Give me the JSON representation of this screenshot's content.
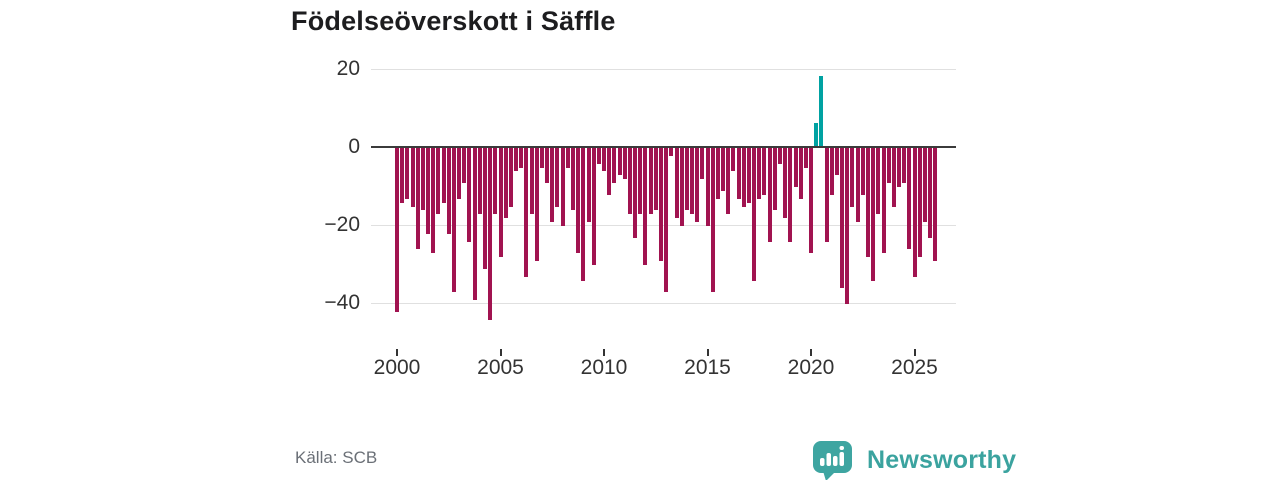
{
  "header": {
    "title": "Födelseöverskott i Säffle"
  },
  "footer": {
    "source": "Källa: SCB",
    "brand": "Newsworthy",
    "logo_icon": "newsworthy-speech-bubble-barchart-icon"
  },
  "colors": {
    "negative_bar": "#a11350",
    "positive_bar": "#00a2a2",
    "grid": "#e0e0e0",
    "zero_line": "#3b3b3b",
    "axis_text": "#333333",
    "brand_teal": "#3ba39f",
    "source_text": "#6b7077"
  },
  "chart_data": {
    "type": "bar",
    "title": "Födelseöverskott i Säffle",
    "xlabel": "",
    "ylabel": "",
    "frequency": "quarterly",
    "x_start": "2000-Q1",
    "x_end": "2026-Q1",
    "x_tick_labels": [
      "2000",
      "2005",
      "2010",
      "2015",
      "2020",
      "2025"
    ],
    "x_tick_quarter_index": [
      0,
      20,
      40,
      60,
      80,
      100
    ],
    "y_ticks": [
      20,
      0,
      -20,
      -40
    ],
    "y_tick_labels": [
      "20",
      "0",
      "−20",
      "−40"
    ],
    "ylim": [
      -46,
      22
    ],
    "grid": true,
    "legend": false,
    "series": [
      {
        "name": "Födelseöverskott",
        "values": [
          -42,
          -14,
          -13,
          -15,
          -26,
          -16,
          -22,
          -27,
          -17,
          -14,
          -22,
          -37,
          -13,
          -9,
          -24,
          -39,
          -17,
          -31,
          -44,
          -17,
          -28,
          -18,
          -15,
          -6,
          -5,
          -33,
          -17,
          -29,
          -5,
          -9,
          -19,
          -15,
          -20,
          -5,
          -16,
          -27,
          -34,
          -19,
          -30,
          -4,
          -6,
          -12,
          -9,
          -7,
          -8,
          -17,
          -23,
          -17,
          -30,
          -17,
          -16,
          -29,
          -37,
          -2,
          -18,
          -20,
          -16,
          -17,
          -19,
          -8,
          -20,
          -37,
          -13,
          -11,
          -17,
          -6,
          -13,
          -15,
          -14,
          -34,
          -13,
          -12,
          -24,
          -16,
          -4,
          -18,
          -24,
          -10,
          -13,
          -5,
          -27,
          6,
          18,
          -24,
          -12,
          -7,
          -36,
          -40,
          -15,
          -19,
          -12,
          -28,
          -34,
          -17,
          -27,
          -9,
          -15,
          -10,
          -9,
          -26,
          -33,
          -28,
          -19,
          -23,
          -29
        ]
      }
    ]
  }
}
